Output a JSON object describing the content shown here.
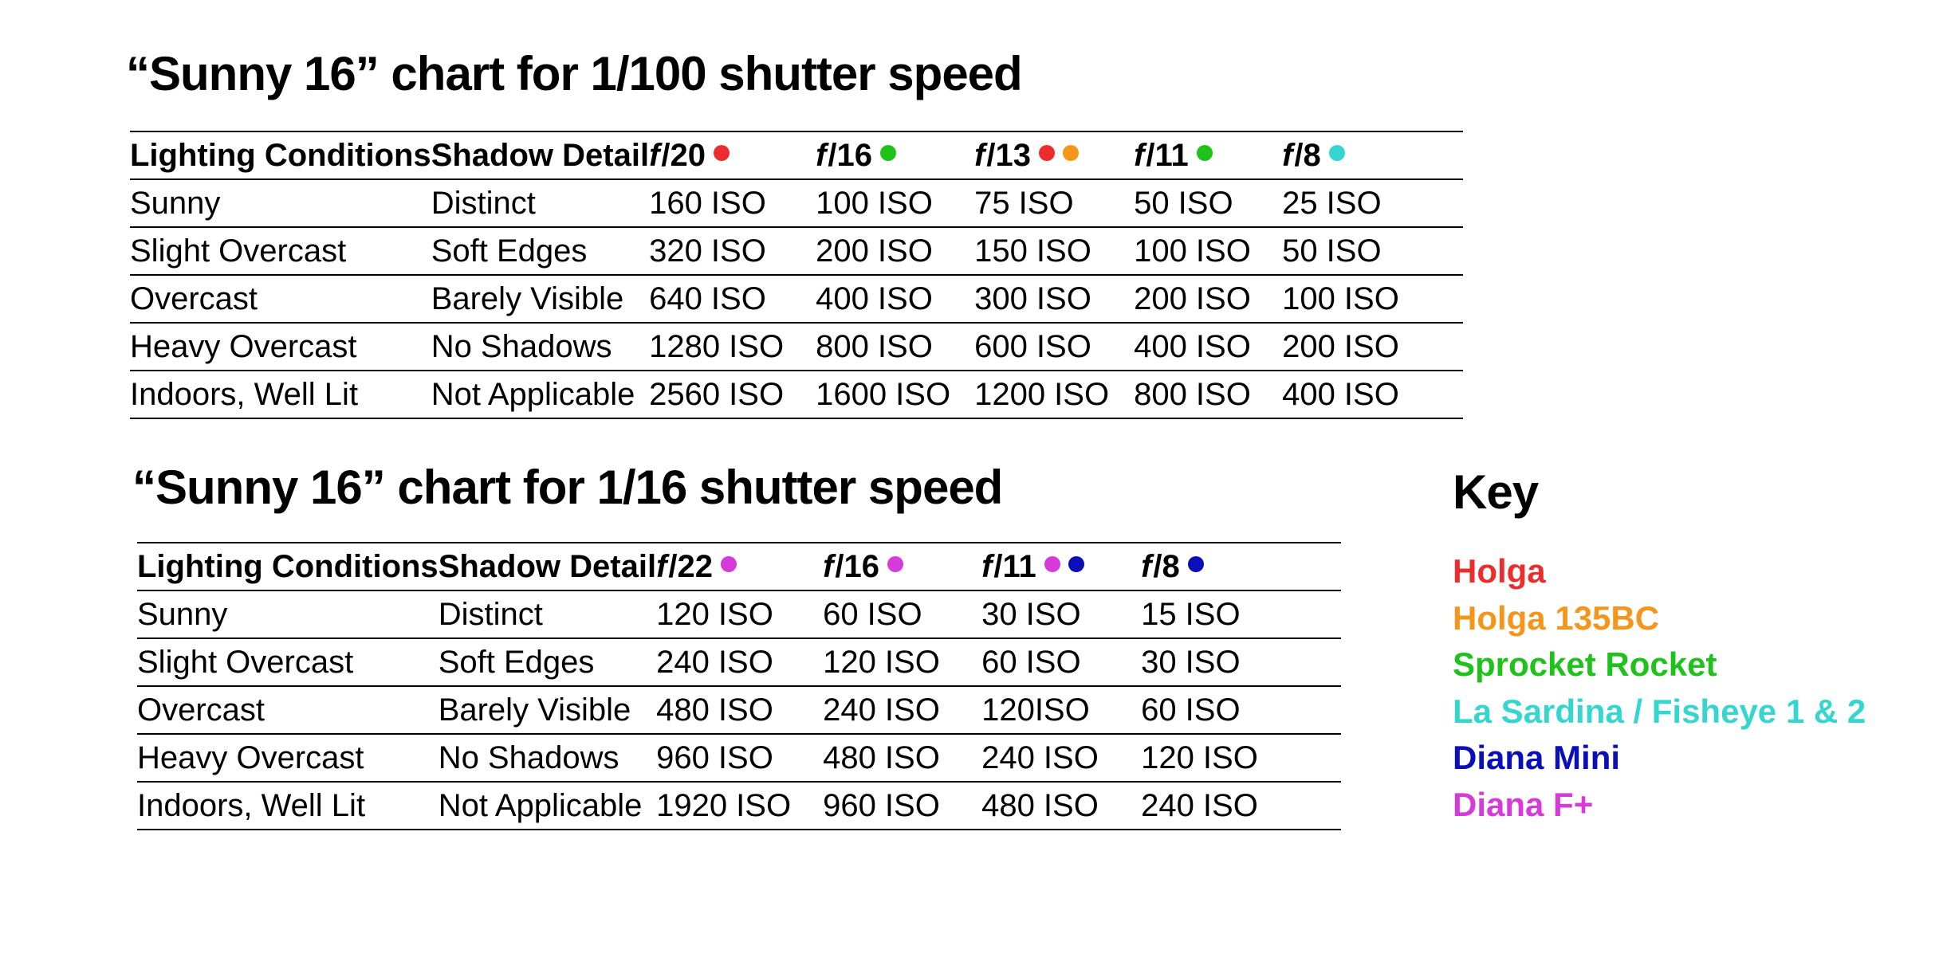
{
  "colors": {
    "holga": "#ec2d2d",
    "holga135bc": "#f5961b",
    "sprocket_rocket": "#1fc21a",
    "la_sardina": "#35d6cf",
    "diana_mini": "#0a0fb8",
    "diana_f_plus": "#d63ad9"
  },
  "table1": {
    "title": "“Sunny 16” chart for 1/100 shutter speed",
    "col_lighting": "Lighting Conditions",
    "col_shadow": "Shadow Detail",
    "apertures": [
      {
        "f": "f",
        "num": "/20",
        "dots": [
          "holga"
        ]
      },
      {
        "f": "f",
        "num": "/16",
        "dots": [
          "sprocket_rocket"
        ]
      },
      {
        "f": "f",
        "num": "/13",
        "dots": [
          "holga",
          "holga135bc"
        ]
      },
      {
        "f": "f",
        "num": "/11",
        "dots": [
          "sprocket_rocket"
        ]
      },
      {
        "f": "f",
        "num": "/8",
        "dots": [
          "la_sardina"
        ]
      }
    ],
    "rows": [
      {
        "lighting": "Sunny",
        "shadow": "Distinct",
        "values": [
          "160 ISO",
          "100 ISO",
          "75 ISO",
          "50 ISO",
          "25 ISO"
        ]
      },
      {
        "lighting": "Slight Overcast",
        "shadow": "Soft Edges",
        "values": [
          "320 ISO",
          "200 ISO",
          "150 ISO",
          "100 ISO",
          "50 ISO"
        ]
      },
      {
        "lighting": "Overcast",
        "shadow": "Barely Visible",
        "values": [
          "640 ISO",
          "400 ISO",
          "300 ISO",
          "200 ISO",
          "100 ISO"
        ]
      },
      {
        "lighting": "Heavy Overcast",
        "shadow": "No Shadows",
        "values": [
          "1280 ISO",
          "800 ISO",
          "600 ISO",
          "400 ISO",
          "200 ISO"
        ]
      },
      {
        "lighting": "Indoors, Well Lit",
        "shadow": "Not Applicable",
        "values": [
          "2560 ISO",
          "1600 ISO",
          "1200 ISO",
          "800 ISO",
          "400 ISO"
        ]
      }
    ]
  },
  "table2": {
    "title": "“Sunny 16” chart for 1/16 shutter speed",
    "col_lighting": "Lighting Conditions",
    "col_shadow": "Shadow Detail",
    "apertures": [
      {
        "f": "f",
        "num": "/22",
        "dots": [
          "diana_f_plus"
        ]
      },
      {
        "f": "f",
        "num": "/16",
        "dots": [
          "diana_f_plus"
        ]
      },
      {
        "f": "f",
        "num": "/11",
        "dots": [
          "diana_f_plus",
          "diana_mini"
        ]
      },
      {
        "f": "f",
        "num": "/8",
        "dots": [
          "diana_mini"
        ]
      }
    ],
    "rows": [
      {
        "lighting": "Sunny",
        "shadow": "Distinct",
        "values": [
          "120 ISO",
          "60 ISO",
          "30 ISO",
          "15 ISO"
        ]
      },
      {
        "lighting": "Slight Overcast",
        "shadow": "Soft Edges",
        "values": [
          "240 ISO",
          "120 ISO",
          "60 ISO",
          "30 ISO"
        ]
      },
      {
        "lighting": "Overcast",
        "shadow": "Barely Visible",
        "values": [
          "480 ISO",
          "240 ISO",
          "120ISO",
          "60 ISO"
        ]
      },
      {
        "lighting": "Heavy Overcast",
        "shadow": "No Shadows",
        "values": [
          "960 ISO",
          "480 ISO",
          "240 ISO",
          "120 ISO"
        ]
      },
      {
        "lighting": "Indoors, Well Lit",
        "shadow": "Not Applicable",
        "values": [
          "1920 ISO",
          "960 ISO",
          "480 ISO",
          "240 ISO"
        ]
      }
    ]
  },
  "key": {
    "title": "Key",
    "items": [
      {
        "label": "Holga",
        "color": "holga"
      },
      {
        "label": "Holga 135BC",
        "color": "holga135bc"
      },
      {
        "label": "Sprocket Rocket",
        "color": "sprocket_rocket"
      },
      {
        "label": "La Sardina / Fisheye 1 & 2",
        "color": "la_sardina"
      },
      {
        "label": "Diana Mini",
        "color": "diana_mini"
      },
      {
        "label": "Diana  F+",
        "color": "diana_f_plus"
      }
    ]
  }
}
